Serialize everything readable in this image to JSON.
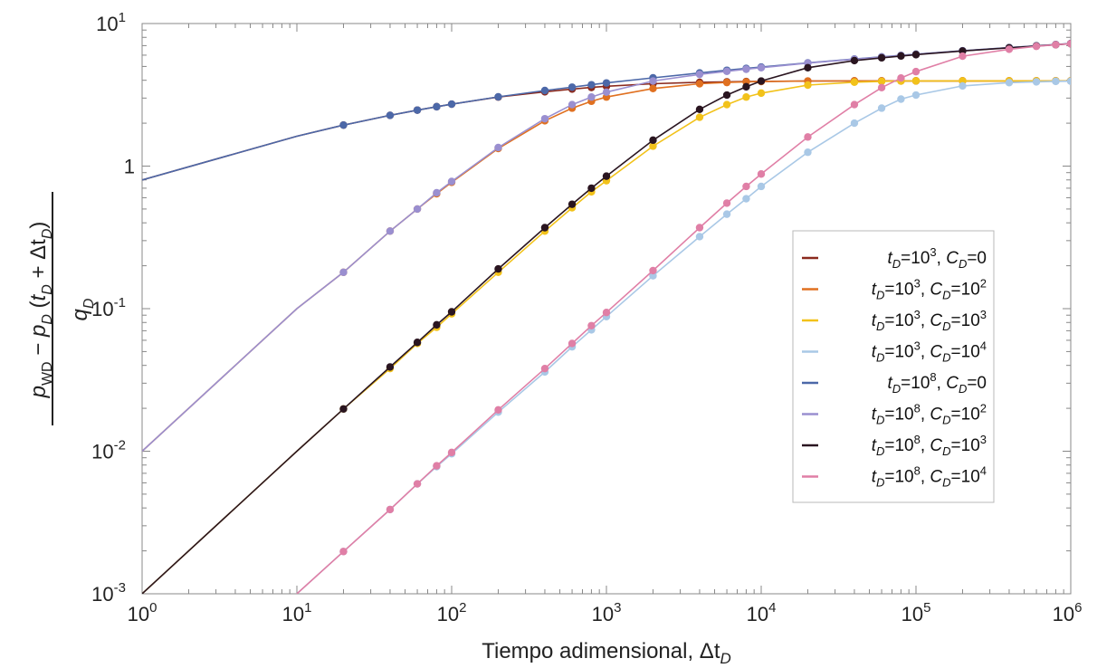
{
  "chart_data": {
    "type": "line",
    "scale": {
      "x": "log",
      "y": "log"
    },
    "xlabel": "Tiempo adimensional, Δt_D",
    "ylabel": "(p_WD − p_D(t_D + Δt_D)) / q_D",
    "xlim": [
      1,
      1000000
    ],
    "ylim": [
      0.001,
      10
    ],
    "grid": false,
    "legend_position": "right-center",
    "x_ticks": [
      {
        "base": "10",
        "exp": "0"
      },
      {
        "base": "10",
        "exp": "1"
      },
      {
        "base": "10",
        "exp": "2"
      },
      {
        "base": "10",
        "exp": "3"
      },
      {
        "base": "10",
        "exp": "4"
      },
      {
        "base": "10",
        "exp": "5"
      },
      {
        "base": "10",
        "exp": "6"
      }
    ],
    "y_ticks": [
      {
        "base": "10",
        "exp": "-3"
      },
      {
        "base": "10",
        "exp": "-2"
      },
      {
        "base": "10",
        "exp": "-1"
      },
      {
        "base": "1",
        "exp": ""
      },
      {
        "base": "10",
        "exp": "1"
      }
    ],
    "series": [
      {
        "name": "t_D=10^3, C_D=0",
        "color": "#8b2a1e",
        "x": [
          1,
          10,
          20,
          40,
          60,
          80,
          100,
          200,
          400,
          600,
          800,
          1000,
          2000,
          4000,
          6000,
          8000,
          10000,
          20000,
          40000,
          60000,
          80000,
          100000,
          200000,
          400000,
          600000,
          800000,
          1000000
        ],
        "y": [
          0.8,
          1.62,
          1.94,
          2.27,
          2.47,
          2.61,
          2.72,
          3.05,
          3.32,
          3.47,
          3.56,
          3.63,
          3.78,
          3.87,
          3.9,
          3.92,
          3.93,
          3.95,
          3.96,
          3.96,
          3.96,
          3.96,
          3.96,
          3.96,
          3.96,
          3.96,
          3.96
        ]
      },
      {
        "name": "t_D=10^3, C_D=10^2",
        "color": "#e07020",
        "x": [
          1,
          10,
          20,
          40,
          60,
          80,
          100,
          200,
          400,
          600,
          800,
          1000,
          2000,
          4000,
          6000,
          8000,
          10000,
          20000,
          40000,
          60000,
          80000,
          100000,
          200000,
          400000,
          600000,
          800000,
          1000000
        ],
        "y": [
          0.01,
          0.1,
          0.18,
          0.35,
          0.5,
          0.64,
          0.77,
          1.33,
          2.08,
          2.55,
          2.85,
          3.05,
          3.5,
          3.78,
          3.86,
          3.9,
          3.92,
          3.95,
          3.96,
          3.96,
          3.96,
          3.96,
          3.96,
          3.96,
          3.96,
          3.96,
          3.96
        ]
      },
      {
        "name": "t_D=10^3, C_D=10^3",
        "color": "#f2c21a",
        "x": [
          1,
          10,
          20,
          40,
          60,
          80,
          100,
          200,
          400,
          600,
          800,
          1000,
          2000,
          4000,
          6000,
          8000,
          10000,
          20000,
          40000,
          60000,
          80000,
          100000,
          200000,
          400000,
          600000,
          800000,
          1000000
        ],
        "y": [
          0.001,
          0.01,
          0.0198,
          0.038,
          0.057,
          0.074,
          0.092,
          0.18,
          0.35,
          0.51,
          0.66,
          0.79,
          1.38,
          2.2,
          2.7,
          3.05,
          3.25,
          3.7,
          3.88,
          3.93,
          3.95,
          3.96,
          3.96,
          3.96,
          3.96,
          3.96,
          3.96
        ]
      },
      {
        "name": "t_D=10^3, C_D=10^4",
        "color": "#a9c8e6",
        "x": [
          10,
          20,
          40,
          60,
          80,
          100,
          200,
          400,
          600,
          800,
          1000,
          2000,
          4000,
          6000,
          8000,
          10000,
          20000,
          40000,
          60000,
          80000,
          100000,
          200000,
          400000,
          600000,
          800000,
          1000000
        ],
        "y": [
          0.001,
          0.00198,
          0.0039,
          0.0059,
          0.0078,
          0.0096,
          0.0188,
          0.036,
          0.054,
          0.071,
          0.088,
          0.17,
          0.32,
          0.46,
          0.59,
          0.72,
          1.25,
          2.0,
          2.55,
          2.95,
          3.15,
          3.65,
          3.85,
          3.9,
          3.93,
          3.94
        ]
      },
      {
        "name": "t_D=10^8, C_D=0",
        "color": "#4c68a8",
        "x": [
          1,
          10,
          20,
          40,
          60,
          80,
          100,
          200,
          400,
          600,
          800,
          1000,
          2000,
          4000,
          6000,
          8000,
          10000,
          20000,
          40000,
          60000,
          80000,
          100000,
          200000,
          400000,
          600000,
          800000,
          1000000
        ],
        "y": [
          0.8,
          1.62,
          1.94,
          2.27,
          2.47,
          2.61,
          2.72,
          3.06,
          3.39,
          3.58,
          3.72,
          3.83,
          4.16,
          4.5,
          4.7,
          4.84,
          4.95,
          5.3,
          5.64,
          5.84,
          5.98,
          6.1,
          6.44,
          6.78,
          6.98,
          7.12,
          7.24
        ]
      },
      {
        "name": "t_D=10^8, C_D=10^2",
        "color": "#9a8fd0",
        "x": [
          1,
          10,
          20,
          40,
          60,
          80,
          100,
          200,
          400,
          600,
          800,
          1000,
          2000,
          4000,
          6000,
          8000,
          10000,
          20000,
          40000,
          60000,
          80000,
          100000,
          200000,
          400000,
          600000,
          800000,
          1000000
        ],
        "y": [
          0.01,
          0.1,
          0.18,
          0.35,
          0.5,
          0.65,
          0.78,
          1.35,
          2.15,
          2.7,
          3.05,
          3.3,
          3.95,
          4.4,
          4.62,
          4.78,
          4.9,
          5.28,
          5.62,
          5.82,
          5.97,
          6.08,
          6.43,
          6.77,
          6.97,
          7.11,
          7.23
        ]
      },
      {
        "name": "t_D=10^8, C_D=10^3",
        "color": "#2a1520",
        "x": [
          1,
          10,
          20,
          40,
          60,
          80,
          100,
          200,
          400,
          600,
          800,
          1000,
          2000,
          4000,
          6000,
          8000,
          10000,
          20000,
          40000,
          60000,
          80000,
          100000,
          200000,
          400000,
          600000,
          800000,
          1000000
        ],
        "y": [
          0.001,
          0.01,
          0.0198,
          0.039,
          0.058,
          0.077,
          0.095,
          0.19,
          0.37,
          0.54,
          0.7,
          0.85,
          1.52,
          2.5,
          3.15,
          3.6,
          3.95,
          4.9,
          5.5,
          5.75,
          5.92,
          6.05,
          6.42,
          6.76,
          6.96,
          7.1,
          7.22
        ]
      },
      {
        "name": "t_D=10^8, C_D=10^4",
        "color": "#e07fa6",
        "x": [
          10,
          20,
          40,
          60,
          80,
          100,
          200,
          400,
          600,
          800,
          1000,
          2000,
          4000,
          6000,
          8000,
          10000,
          20000,
          40000,
          60000,
          80000,
          100000,
          200000,
          400000,
          600000,
          800000,
          1000000
        ],
        "y": [
          0.001,
          0.00198,
          0.0039,
          0.0059,
          0.0079,
          0.0098,
          0.0195,
          0.038,
          0.057,
          0.076,
          0.094,
          0.185,
          0.37,
          0.55,
          0.72,
          0.88,
          1.6,
          2.7,
          3.55,
          4.15,
          4.6,
          5.9,
          6.6,
          6.92,
          7.1,
          7.22
        ]
      }
    ]
  }
}
